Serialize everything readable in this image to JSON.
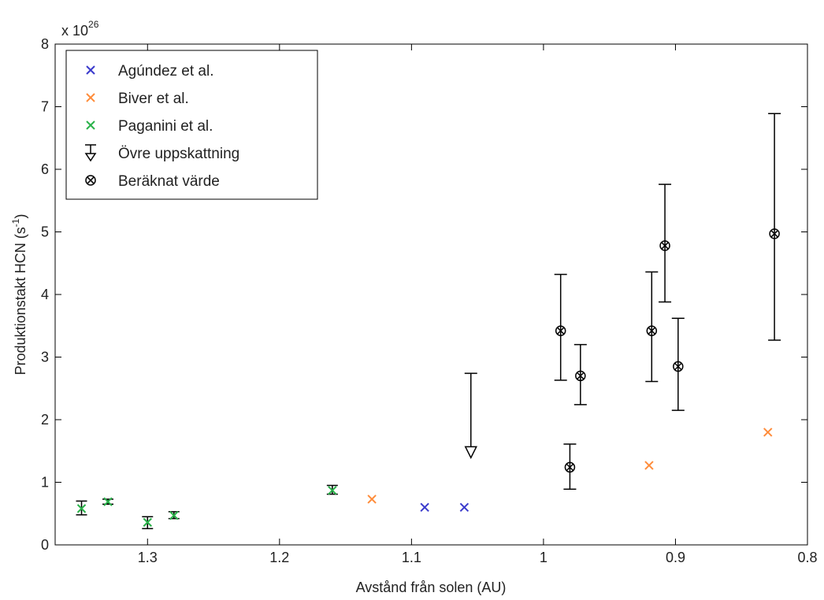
{
  "chart_data": {
    "type": "scatter",
    "xlabel": "Avstånd från solen (AU)",
    "ylabel_main": "Produktionstakt HCN (s",
    "ylabel_sup": "-1",
    "ylabel_close": ")",
    "y_multiplier_base": "x 10",
    "y_multiplier_exp": "26",
    "xlim": [
      1.37,
      0.8
    ],
    "ylim": [
      0,
      8
    ],
    "x_reversed": true,
    "x_ticks": [
      1.3,
      1.2,
      1.1,
      1,
      0.9,
      0.8
    ],
    "x_tick_labels": [
      "1.3",
      "1.2",
      "1.1",
      "1",
      "0.9",
      "0.8"
    ],
    "y_ticks": [
      0,
      1,
      2,
      3,
      4,
      5,
      6,
      7,
      8
    ],
    "y_tick_labels": [
      "0",
      "1",
      "2",
      "3",
      "4",
      "5",
      "6",
      "7",
      "8"
    ],
    "legend_position": "top-left",
    "legend": [
      {
        "label": "Agúndez et al.",
        "marker": "x",
        "color": "#3b3bcc"
      },
      {
        "label": "Biver et al.",
        "marker": "x",
        "color": "#ff8c3a"
      },
      {
        "label": "Paganini et al.",
        "marker": "x",
        "color": "#2ab24a"
      },
      {
        "label": "Övre uppskattning",
        "marker": "upper-limit-triangle",
        "color": "#000000"
      },
      {
        "label": "Beräknat värde",
        "marker": "circle-x",
        "color": "#000000"
      }
    ],
    "series": [
      {
        "name": "Agúndez et al.",
        "marker": "x",
        "color": "#3b3bcc",
        "points": [
          {
            "x": 1.09,
            "y": 0.6
          },
          {
            "x": 1.06,
            "y": 0.6
          }
        ]
      },
      {
        "name": "Biver et al.",
        "marker": "x",
        "color": "#ff8c3a",
        "points": [
          {
            "x": 1.13,
            "y": 0.73
          },
          {
            "x": 0.92,
            "y": 1.27
          },
          {
            "x": 0.83,
            "y": 1.8
          }
        ]
      },
      {
        "name": "Paganini et al.",
        "marker": "x",
        "color": "#2ab24a",
        "points": [
          {
            "x": 1.35,
            "y": 0.58,
            "err_low": 0.48,
            "err_high": 0.7
          },
          {
            "x": 1.33,
            "y": 0.69,
            "err_low": 0.65,
            "err_high": 0.73
          },
          {
            "x": 1.3,
            "y": 0.36,
            "err_low": 0.26,
            "err_high": 0.45
          },
          {
            "x": 1.28,
            "y": 0.47,
            "err_low": 0.42,
            "err_high": 0.53
          },
          {
            "x": 1.16,
            "y": 0.87,
            "err_low": 0.81,
            "err_high": 0.95
          }
        ]
      },
      {
        "name": "Övre uppskattning",
        "marker": "upper-limit-triangle",
        "color": "#000000",
        "points": [
          {
            "x": 1.055,
            "y": 1.48,
            "err_high": 2.74
          }
        ]
      },
      {
        "name": "Beräknat värde",
        "marker": "circle-x",
        "color": "#000000",
        "points": [
          {
            "x": 0.987,
            "y": 3.42,
            "err_low": 2.63,
            "err_high": 4.32
          },
          {
            "x": 0.98,
            "y": 1.24,
            "err_low": 0.89,
            "err_high": 1.61
          },
          {
            "x": 0.972,
            "y": 2.7,
            "err_low": 2.24,
            "err_high": 3.2
          },
          {
            "x": 0.918,
            "y": 3.42,
            "err_low": 2.61,
            "err_high": 4.36
          },
          {
            "x": 0.908,
            "y": 4.78,
            "err_low": 3.88,
            "err_high": 5.76
          },
          {
            "x": 0.898,
            "y": 2.85,
            "err_low": 2.15,
            "err_high": 3.62
          },
          {
            "x": 0.825,
            "y": 4.97,
            "err_low": 3.27,
            "err_high": 6.89
          }
        ]
      }
    ]
  }
}
